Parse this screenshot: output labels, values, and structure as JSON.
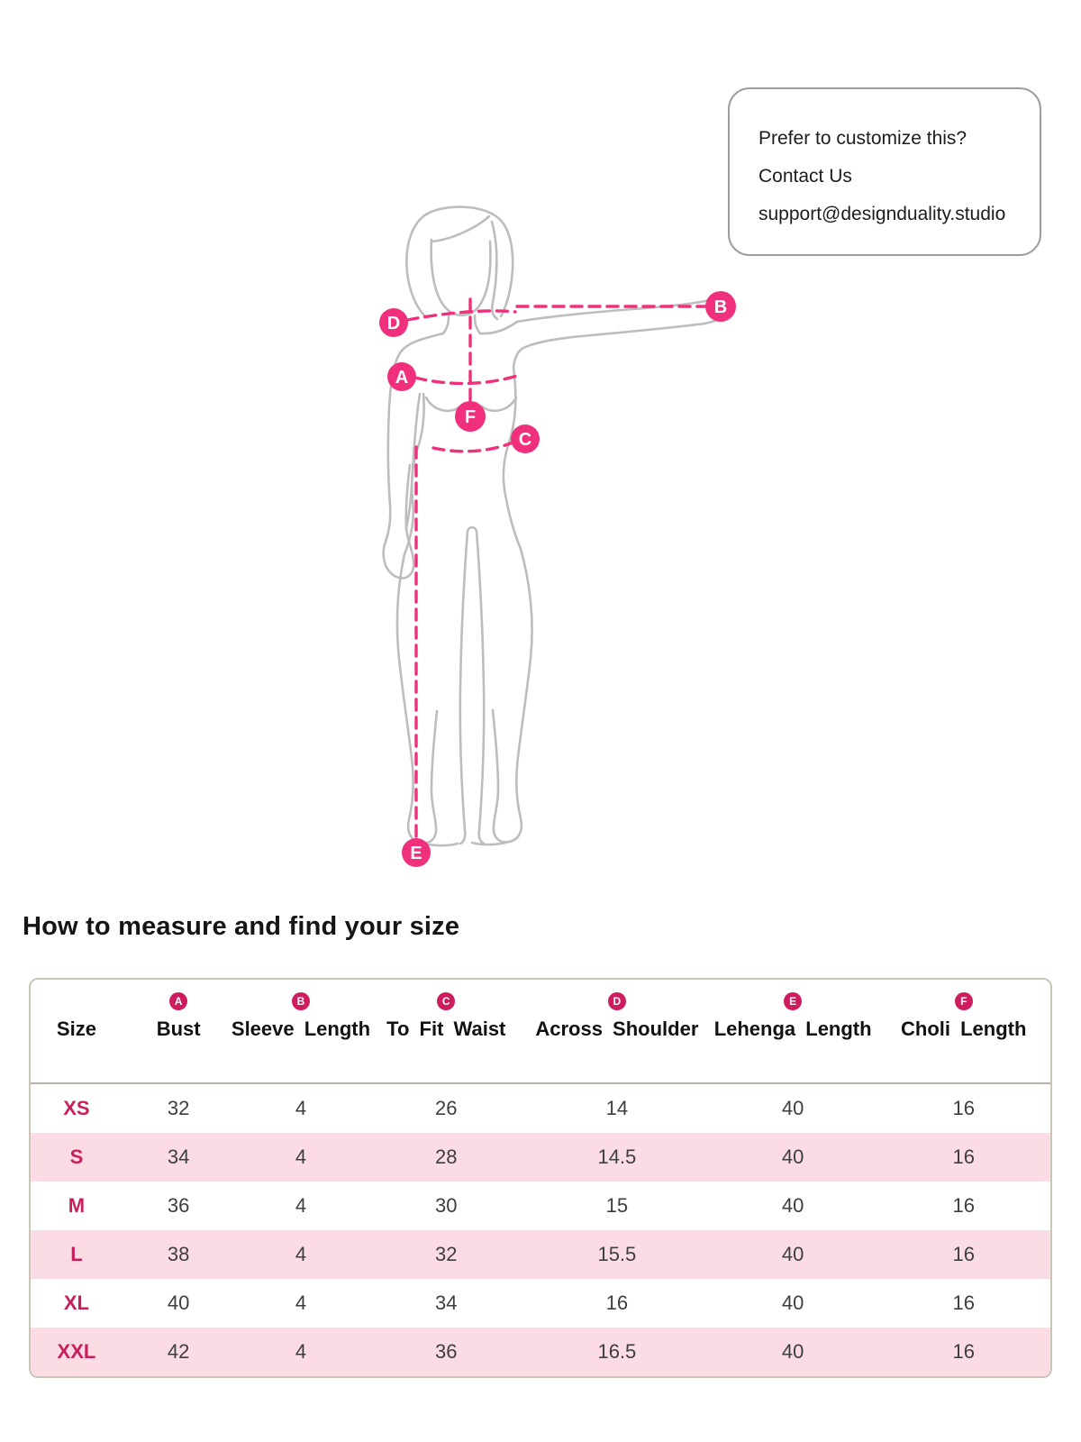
{
  "contact_card": {
    "line1": "Prefer to customize this?",
    "line2": "Contact Us",
    "line3": "support@designduality.studio"
  },
  "section_title": "How to measure and find your size",
  "diagram": {
    "markers": [
      {
        "letter": "A"
      },
      {
        "letter": "B"
      },
      {
        "letter": "C"
      },
      {
        "letter": "D"
      },
      {
        "letter": "E"
      },
      {
        "letter": "F"
      }
    ]
  },
  "size_table": {
    "columns": [
      {
        "badge": "",
        "label": "Size"
      },
      {
        "badge": "A",
        "label": "Bust"
      },
      {
        "badge": "B",
        "label": "Sleeve Length"
      },
      {
        "badge": "C",
        "label": "To Fit Waist"
      },
      {
        "badge": "D",
        "label": "Across Shoulder"
      },
      {
        "badge": "E",
        "label": "Lehenga Length"
      },
      {
        "badge": "F",
        "label": "Choli Length"
      }
    ],
    "rows": [
      {
        "size": "XS",
        "values": [
          "32",
          "4",
          "26",
          "14",
          "40",
          "16"
        ]
      },
      {
        "size": "S",
        "values": [
          "34",
          "4",
          "28",
          "14.5",
          "40",
          "16"
        ]
      },
      {
        "size": "M",
        "values": [
          "36",
          "4",
          "30",
          "15",
          "40",
          "16"
        ]
      },
      {
        "size": "L",
        "values": [
          "38",
          "4",
          "32",
          "15.5",
          "40",
          "16"
        ]
      },
      {
        "size": "XL",
        "values": [
          "40",
          "4",
          "34",
          "16",
          "40",
          "16"
        ]
      },
      {
        "size": "XXL",
        "values": [
          "42",
          "4",
          "36",
          "16.5",
          "40",
          "16"
        ]
      }
    ]
  },
  "colors": {
    "accent": "#f0307c",
    "badge": "#ce1d5f",
    "size-label": "#c81e5c",
    "row-pink": "#fbdce5",
    "table-border": "#c9c6b8",
    "figure-gray": "#bdbdbd"
  }
}
